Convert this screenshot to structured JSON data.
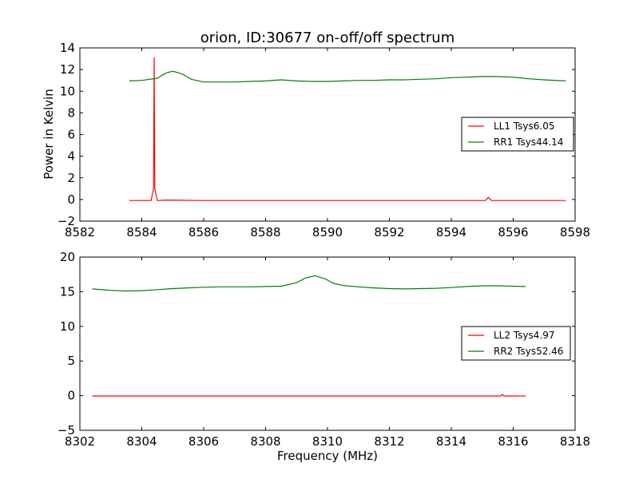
{
  "chart_data": [
    {
      "type": "line",
      "title": "orion, ID:30677 on-off/off spectrum",
      "xlabel": "",
      "ylabel": "Power in Kelvin",
      "xlim": [
        8582,
        8598
      ],
      "ylim": [
        -2,
        14
      ],
      "xticks": [
        8582,
        8584,
        8586,
        8588,
        8590,
        8592,
        8594,
        8596,
        8598
      ],
      "yticks": [
        -2,
        0,
        2,
        4,
        6,
        8,
        10,
        12,
        14
      ],
      "legend_position": "center-right",
      "series": [
        {
          "name": "LL1 Tsys6.05",
          "color": "#ff0000",
          "x": [
            8583.6,
            8584.3,
            8584.38,
            8584.4,
            8584.42,
            8584.5,
            8584.8,
            8586,
            8588,
            8590,
            8592,
            8594,
            8595.1,
            8595.2,
            8595.3,
            8596.5,
            8597.7
          ],
          "y": [
            -0.1,
            -0.1,
            1.0,
            13.1,
            1.0,
            -0.1,
            -0.05,
            -0.1,
            -0.1,
            -0.1,
            -0.1,
            -0.1,
            -0.1,
            0.2,
            -0.1,
            -0.1,
            -0.1
          ]
        },
        {
          "name": "RR1 Tsys44.14",
          "color": "#008000",
          "x": [
            8583.6,
            8584.0,
            8584.5,
            8584.8,
            8585.0,
            8585.3,
            8585.6,
            8586.0,
            8586.5,
            8587.0,
            8587.5,
            8588.0,
            8588.5,
            8589.0,
            8589.5,
            8590.0,
            8590.5,
            8591.0,
            8591.5,
            8592.0,
            8592.5,
            8593.0,
            8593.5,
            8594.0,
            8594.5,
            8595.0,
            8595.5,
            8596.0,
            8596.5,
            8597.0,
            8597.7
          ],
          "y": [
            10.95,
            11.0,
            11.2,
            11.7,
            11.85,
            11.6,
            11.1,
            10.85,
            10.85,
            10.85,
            10.9,
            10.95,
            11.05,
            10.95,
            10.9,
            10.9,
            10.95,
            11.0,
            11.0,
            11.05,
            11.05,
            11.1,
            11.15,
            11.25,
            11.3,
            11.35,
            11.35,
            11.3,
            11.15,
            11.05,
            10.95
          ]
        }
      ]
    },
    {
      "type": "line",
      "title": "",
      "xlabel": "Frequency (MHz)",
      "ylabel": "",
      "xlim": [
        8302,
        8318
      ],
      "ylim": [
        -5,
        20
      ],
      "xticks": [
        8302,
        8304,
        8306,
        8308,
        8310,
        8312,
        8314,
        8316,
        8318
      ],
      "yticks": [
        -5,
        0,
        5,
        10,
        15,
        20
      ],
      "legend_position": "center-right",
      "series": [
        {
          "name": "LL2 Tsys4.97",
          "color": "#ff0000",
          "x": [
            8302.4,
            8304,
            8306,
            8308,
            8310,
            8312,
            8314,
            8315.6,
            8315.65,
            8315.7,
            8316.4
          ],
          "y": [
            -0.05,
            -0.05,
            -0.05,
            -0.05,
            -0.05,
            -0.05,
            -0.05,
            -0.05,
            0.2,
            -0.05,
            -0.05
          ]
        },
        {
          "name": "RR2 Tsys52.46",
          "color": "#008000",
          "x": [
            8302.4,
            8303.0,
            8303.5,
            8304.0,
            8304.5,
            8305.0,
            8305.5,
            8306.0,
            8306.5,
            8307.0,
            8307.5,
            8308.0,
            8308.5,
            8309.0,
            8309.3,
            8309.6,
            8309.9,
            8310.2,
            8310.5,
            8311.0,
            8311.5,
            8312.0,
            8312.5,
            8313.0,
            8313.5,
            8314.0,
            8314.5,
            8315.0,
            8315.5,
            8316.0,
            8316.4
          ],
          "y": [
            15.4,
            15.2,
            15.1,
            15.15,
            15.3,
            15.45,
            15.55,
            15.65,
            15.7,
            15.7,
            15.7,
            15.75,
            15.8,
            16.3,
            17.0,
            17.3,
            16.9,
            16.2,
            15.9,
            15.7,
            15.55,
            15.45,
            15.4,
            15.45,
            15.5,
            15.6,
            15.75,
            15.85,
            15.85,
            15.8,
            15.75
          ]
        }
      ]
    }
  ]
}
